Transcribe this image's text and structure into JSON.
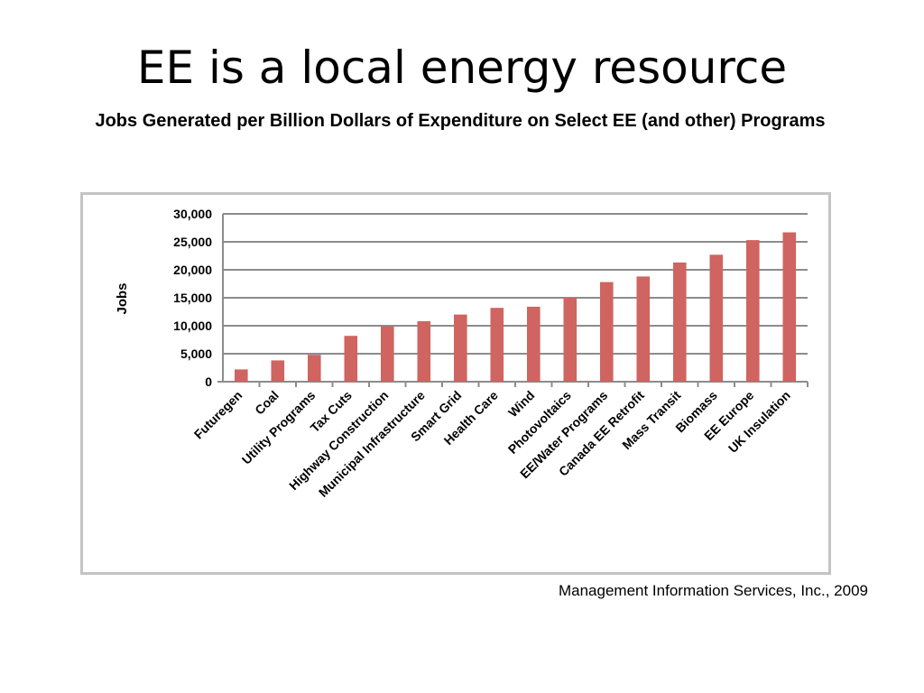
{
  "slide": {
    "title": "EE is a local energy resource",
    "source": "Management Information Services, Inc., 2009"
  },
  "chart_data": {
    "type": "bar",
    "title": "Jobs Generated per Billion Dollars of Expenditure on Select EE (and other) Programs",
    "ylabel": "Jobs",
    "xlabel": "",
    "ylim": [
      0,
      30000
    ],
    "yticks": [
      0,
      5000,
      10000,
      15000,
      20000,
      25000,
      30000
    ],
    "ytick_labels": [
      "0",
      "5,000",
      "10,000",
      "15,000",
      "20,000",
      "25,000",
      "30,000"
    ],
    "grid": true,
    "bar_color": "#cf6460",
    "categories": [
      "Futuregen",
      "Coal",
      "Utility Programs",
      "Tax Cuts",
      "Highway Construction",
      "Municipal Infrastructure",
      "Smart Grid",
      "Health Care",
      "Wind",
      "Photovoltaics",
      "EE/Water Programs",
      "Canada EE Retrofit",
      "Mass Transit",
      "Biomass",
      "EE Europe",
      "UK Insulation"
    ],
    "values": [
      2200,
      3800,
      4800,
      8200,
      9900,
      10800,
      12000,
      13200,
      13400,
      15000,
      17800,
      18800,
      21300,
      22700,
      25300,
      26700
    ]
  }
}
